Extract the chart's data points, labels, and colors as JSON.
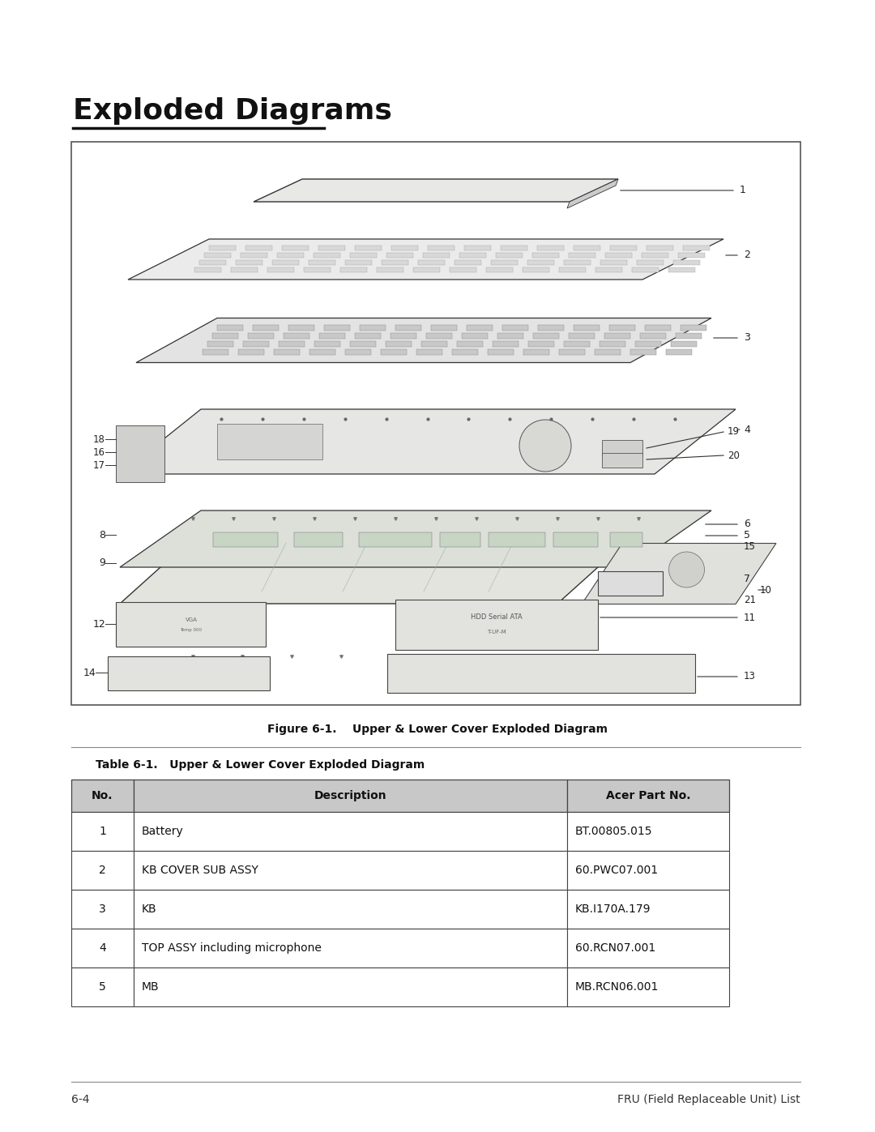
{
  "title": "Exploded Diagrams",
  "figure_caption": "Figure 6-1.    Upper & Lower Cover Exploded Diagram",
  "table_title": "Table 6-1.   Upper & Lower Cover Exploded Diagram",
  "table_headers": [
    "No.",
    "Description",
    "Acer Part No."
  ],
  "table_rows": [
    [
      "1",
      "Battery",
      "BT.00805.015"
    ],
    [
      "2",
      "KB COVER SUB ASSY",
      "60.PWC07.001"
    ],
    [
      "3",
      "KB",
      "KB.I170A.179"
    ],
    [
      "4",
      "TOP ASSY including microphone",
      "60.RCN07.001"
    ],
    [
      "5",
      "MB",
      "MB.RCN06.001"
    ]
  ],
  "footer_left": "6-4",
  "footer_right": "FRU (Field Replaceable Unit) List",
  "bg_color": "#ffffff",
  "header_bg": "#cccccc",
  "table_border_color": "#444444",
  "title_fontsize": 26,
  "caption_fontsize": 10,
  "table_title_fontsize": 10,
  "header_fontsize": 10,
  "row_fontsize": 10,
  "footer_fontsize": 10
}
